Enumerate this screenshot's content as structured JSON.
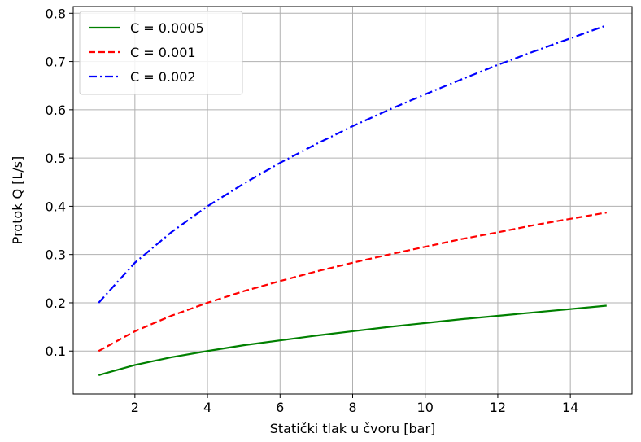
{
  "chart_data": {
    "type": "line",
    "title": "",
    "xlabel": "Statički tlak u čvoru [bar]",
    "ylabel": "Protok Q [L/s]",
    "xlim": [
      0.3,
      15.7
    ],
    "ylim": [
      0.011,
      0.814
    ],
    "xticks": [
      2,
      4,
      6,
      8,
      10,
      12,
      14
    ],
    "xtick_labels": [
      "2",
      "4",
      "6",
      "8",
      "10",
      "12",
      "14"
    ],
    "yticks": [
      0.1,
      0.2,
      0.3,
      0.4,
      0.5,
      0.6,
      0.7,
      0.8
    ],
    "ytick_labels": [
      "0.1",
      "0.2",
      "0.3",
      "0.4",
      "0.5",
      "0.6",
      "0.7",
      "0.8"
    ],
    "grid": true,
    "legend_position": "top-left",
    "x": [
      1,
      2,
      3,
      4,
      5,
      6,
      7,
      8,
      9,
      10,
      11,
      12,
      13,
      14,
      15
    ],
    "series": [
      {
        "name": "C = 0.0005",
        "color": "#008000",
        "line_style": "solid",
        "values": [
          0.05,
          0.071,
          0.087,
          0.1,
          0.112,
          0.122,
          0.132,
          0.141,
          0.15,
          0.158,
          0.166,
          0.173,
          0.18,
          0.187,
          0.194
        ]
      },
      {
        "name": "C = 0.001",
        "color": "#ff0000",
        "line_style": "dashed",
        "values": [
          0.1,
          0.141,
          0.173,
          0.2,
          0.224,
          0.245,
          0.265,
          0.283,
          0.3,
          0.316,
          0.332,
          0.346,
          0.361,
          0.374,
          0.387
        ]
      },
      {
        "name": "C = 0.002",
        "color": "#0000ff",
        "line_style": "dashdot",
        "values": [
          0.2,
          0.283,
          0.346,
          0.4,
          0.447,
          0.49,
          0.529,
          0.566,
          0.6,
          0.632,
          0.663,
          0.693,
          0.721,
          0.748,
          0.775
        ]
      }
    ]
  }
}
